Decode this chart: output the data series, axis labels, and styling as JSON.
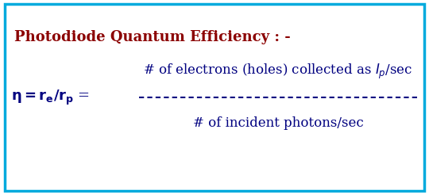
{
  "title": "Photodiode Quantum Efficiency : -",
  "title_color": "#8B0000",
  "border_color": "#00AADD",
  "background_color": "#FFFFFF",
  "text_color": "#000080",
  "eta_label": "$\\mathbf{\\eta= r_e/r_p}$ =",
  "numerator": "# of electrons (holes) collected as $\\mathit{I_p}$/sec",
  "denominator": "# of incident photons/sec",
  "title_fontsize": 13,
  "formula_fontsize": 12,
  "eta_fontsize": 13,
  "fig_width": 5.4,
  "fig_height": 2.45,
  "dpi": 100
}
